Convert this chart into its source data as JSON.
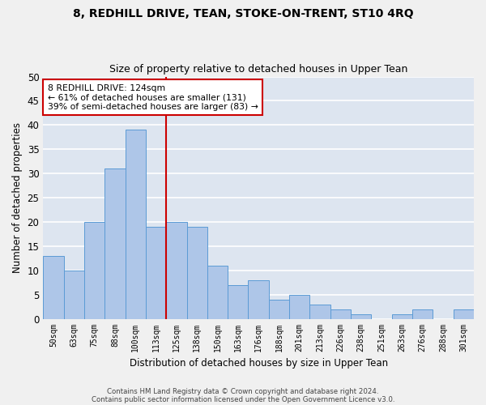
{
  "title1": "8, REDHILL DRIVE, TEAN, STOKE-ON-TRENT, ST10 4RQ",
  "title2": "Size of property relative to detached houses in Upper Tean",
  "xlabel": "Distribution of detached houses by size in Upper Tean",
  "ylabel": "Number of detached properties",
  "categories": [
    "50sqm",
    "63sqm",
    "75sqm",
    "88sqm",
    "100sqm",
    "113sqm",
    "125sqm",
    "138sqm",
    "150sqm",
    "163sqm",
    "176sqm",
    "188sqm",
    "201sqm",
    "213sqm",
    "226sqm",
    "238sqm",
    "251sqm",
    "263sqm",
    "276sqm",
    "288sqm",
    "301sqm"
  ],
  "values": [
    13,
    10,
    20,
    31,
    39,
    19,
    20,
    19,
    11,
    7,
    8,
    4,
    5,
    3,
    2,
    1,
    0,
    1,
    2,
    0,
    2
  ],
  "bar_color": "#aec6e8",
  "bar_edge_color": "#5b9bd5",
  "vline_x": 5.5,
  "vline_color": "#cc0000",
  "annotation_title": "8 REDHILL DRIVE: 124sqm",
  "annotation_line1": "← 61% of detached houses are smaller (131)",
  "annotation_line2": "39% of semi-detached houses are larger (83) →",
  "annotation_box_color": "#cc0000",
  "ylim": [
    0,
    50
  ],
  "yticks": [
    0,
    5,
    10,
    15,
    20,
    25,
    30,
    35,
    40,
    45,
    50
  ],
  "footer1": "Contains HM Land Registry data © Crown copyright and database right 2024.",
  "footer2": "Contains public sector information licensed under the Open Government Licence v3.0.",
  "bg_color": "#dde5f0",
  "fig_color": "#f0f0f0",
  "grid_color": "#ffffff"
}
